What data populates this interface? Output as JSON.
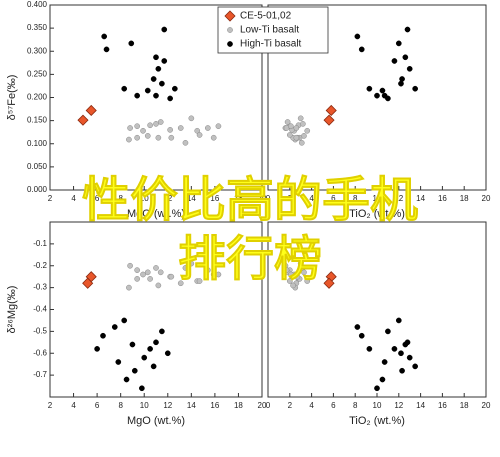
{
  "chart_data": [
    {
      "type": "scatter",
      "x_label": "MgO (wt.%)",
      "y_label": "δ⁵⁷Fe(‰)",
      "xlim": [
        2,
        20
      ],
      "xticks": [
        2,
        4,
        6,
        8,
        10,
        12,
        14,
        16,
        18,
        20
      ],
      "ylim": [
        0,
        0.4
      ],
      "yticks": [
        {
          "value": 0,
          "label": "0.000"
        },
        {
          "value": 0.05,
          "label": "0.050"
        },
        {
          "value": 0.1,
          "label": "0.100"
        },
        {
          "value": 0.15,
          "label": "0.150"
        },
        {
          "value": 0.2,
          "label": "0.200"
        },
        {
          "value": 0.25,
          "label": "0.250"
        },
        {
          "value": 0.3,
          "label": "0.300"
        },
        {
          "value": 0.35,
          "label": "0.350"
        },
        {
          "value": 0.4,
          "label": "0.400"
        }
      ],
      "series": [
        {
          "color": "#e8562a",
          "marker": "diamond",
          "x": [
            5.5,
            4.8
          ],
          "values": [
            0.172,
            0.151
          ]
        },
        {
          "color": "#c0c0c0",
          "marker": "circle",
          "x": [
            8.8,
            9.4,
            9.9,
            10.5,
            11.0,
            11.4,
            12.2,
            13.1,
            14.0,
            14.5,
            15.4,
            16.3,
            8.7,
            9.4,
            10.3,
            11.2,
            12.3,
            13.5,
            14.7,
            15.9
          ],
          "values": [
            0.134,
            0.138,
            0.128,
            0.14,
            0.143,
            0.147,
            0.13,
            0.134,
            0.155,
            0.128,
            0.134,
            0.138,
            0.109,
            0.113,
            0.117,
            0.113,
            0.113,
            0.102,
            0.119,
            0.113
          ]
        },
        {
          "color": "#000000",
          "marker": "circle",
          "x": [
            6.6,
            6.8,
            8.9,
            11.0,
            11.2,
            10.8,
            11.7,
            11.7,
            10.3,
            9.4,
            11.0,
            12.2,
            11.5,
            8.3,
            12.6
          ],
          "values": [
            0.332,
            0.304,
            0.317,
            0.287,
            0.262,
            0.24,
            0.279,
            0.347,
            0.215,
            0.204,
            0.204,
            0.198,
            0.23,
            0.219,
            0.219
          ]
        }
      ]
    },
    {
      "type": "scatter",
      "x_label": "TiO₂ (wt.%)",
      "xlim": [
        0,
        20
      ],
      "xticks": [
        0,
        2,
        4,
        6,
        8,
        10,
        12,
        14,
        16,
        18,
        20
      ],
      "ylim": [
        0,
        0.4
      ],
      "legend": "upper left",
      "series": [
        {
          "name": "CE-5-01,02",
          "color": "#e8562a",
          "marker": "diamond",
          "x": [
            5.8,
            5.6
          ],
          "values": [
            0.172,
            0.151
          ]
        },
        {
          "name": "Low-Ti basalt",
          "color": "#c0c0c0",
          "marker": "circle",
          "x": [
            1.6,
            2.0,
            2.4,
            2.8,
            3.2,
            1.8,
            2.2,
            2.6,
            3.0,
            3.6,
            1.7,
            2.1,
            2.5,
            2.9,
            3.3,
            2.3,
            2.7,
            3.1,
            2.0,
            2.6
          ],
          "values": [
            0.134,
            0.138,
            0.128,
            0.14,
            0.143,
            0.147,
            0.13,
            0.134,
            0.155,
            0.128,
            0.134,
            0.138,
            0.109,
            0.113,
            0.117,
            0.113,
            0.113,
            0.102,
            0.119,
            0.113
          ]
        },
        {
          "name": "High-Ti basalt",
          "color": "#000000",
          "marker": "circle",
          "x": [
            8.2,
            8.6,
            12.0,
            12.6,
            13.0,
            12.3,
            11.6,
            12.8,
            10.5,
            10.0,
            10.7,
            11.0,
            12.2,
            9.3,
            13.5
          ],
          "values": [
            0.332,
            0.304,
            0.317,
            0.287,
            0.262,
            0.24,
            0.279,
            0.347,
            0.215,
            0.204,
            0.204,
            0.198,
            0.23,
            0.219,
            0.219
          ]
        }
      ]
    },
    {
      "type": "scatter",
      "x_label": "MgO (wt.%)",
      "y_label": "δ²⁶Mg(‰)",
      "xlim": [
        2,
        20
      ],
      "xticks": [
        2,
        4,
        6,
        8,
        10,
        12,
        14,
        16,
        18,
        20
      ],
      "ylim": [
        -0.8,
        0
      ],
      "yticks": [
        -0.7,
        -0.6,
        -0.5,
        -0.4,
        -0.3,
        -0.2,
        -0.1
      ],
      "series": [
        {
          "color": "#e8562a",
          "marker": "diamond",
          "x": [
            5.5,
            5.2
          ],
          "values": [
            -0.25,
            -0.28
          ]
        },
        {
          "color": "#c0c0c0",
          "marker": "circle",
          "x": [
            8.8,
            9.4,
            9.9,
            10.5,
            11.0,
            11.4,
            12.2,
            13.1,
            14.0,
            14.5,
            15.4,
            16.3,
            8.7,
            9.4,
            10.3,
            11.2,
            12.3,
            13.5,
            14.7,
            15.9
          ],
          "values": [
            -0.2,
            -0.22,
            -0.24,
            -0.26,
            -0.21,
            -0.23,
            -0.25,
            -0.28,
            -0.19,
            -0.27,
            -0.22,
            -0.24,
            -0.3,
            -0.26,
            -0.23,
            -0.29,
            -0.25,
            -0.21,
            -0.27,
            -0.24
          ]
        },
        {
          "color": "#000000",
          "marker": "circle",
          "x": [
            7.5,
            6.5,
            8.3,
            9.0,
            10.0,
            9.2,
            10.5,
            11.0,
            8.5,
            9.8,
            7.8,
            11.5,
            12.0,
            6.0,
            10.8
          ],
          "values": [
            -0.48,
            -0.52,
            -0.45,
            -0.56,
            -0.62,
            -0.68,
            -0.58,
            -0.55,
            -0.72,
            -0.76,
            -0.64,
            -0.5,
            -0.6,
            -0.58,
            -0.66
          ]
        }
      ]
    },
    {
      "type": "scatter",
      "x_label": "TiO₂ (wt.%)",
      "xlim": [
        0,
        20
      ],
      "xticks": [
        0,
        2,
        4,
        6,
        8,
        10,
        12,
        14,
        16,
        18,
        20
      ],
      "ylim": [
        -0.8,
        0
      ],
      "series": [
        {
          "color": "#e8562a",
          "marker": "diamond",
          "x": [
            5.8,
            5.6
          ],
          "values": [
            -0.25,
            -0.28
          ]
        },
        {
          "color": "#c0c0c0",
          "marker": "circle",
          "x": [
            1.6,
            2.0,
            2.4,
            2.8,
            3.2,
            1.8,
            2.2,
            2.6,
            3.0,
            3.6,
            1.7,
            2.1,
            2.5,
            2.9,
            3.3,
            2.3,
            2.7,
            3.1,
            2.0,
            2.6
          ],
          "values": [
            -0.2,
            -0.22,
            -0.24,
            -0.26,
            -0.21,
            -0.23,
            -0.25,
            -0.28,
            -0.19,
            -0.27,
            -0.22,
            -0.24,
            -0.3,
            -0.26,
            -0.23,
            -0.29,
            -0.25,
            -0.21,
            -0.27,
            -0.24
          ]
        },
        {
          "color": "#000000",
          "marker": "circle",
          "x": [
            8.2,
            8.6,
            12.0,
            12.6,
            13.0,
            12.3,
            11.6,
            12.8,
            10.5,
            10.0,
            10.7,
            11.0,
            12.2,
            9.3,
            13.5
          ],
          "values": [
            -0.48,
            -0.52,
            -0.45,
            -0.56,
            -0.62,
            -0.68,
            -0.58,
            -0.55,
            -0.72,
            -0.76,
            -0.64,
            -0.5,
            -0.6,
            -0.58,
            -0.66
          ]
        }
      ]
    }
  ],
  "overlay_text": [
    "性价比高的手机",
    "排行榜"
  ]
}
